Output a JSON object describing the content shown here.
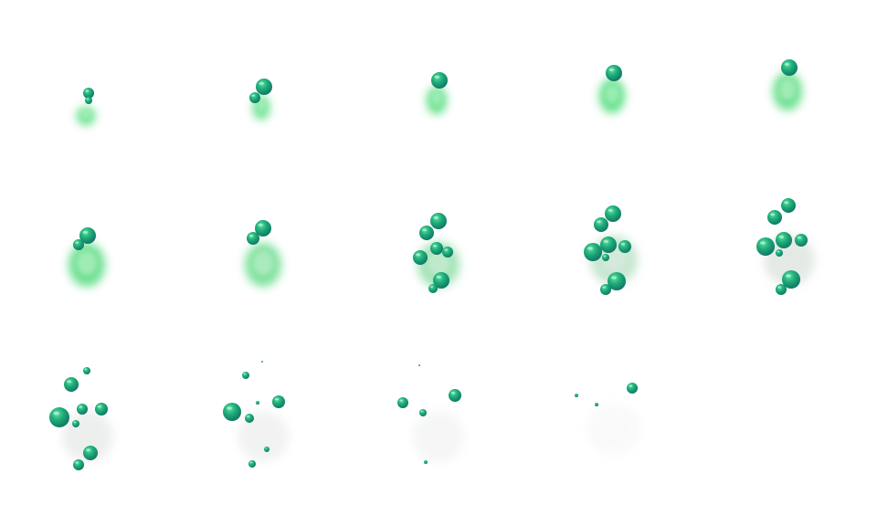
{
  "sprite_sheet": {
    "columns": 5,
    "rows": 3,
    "frame_count": 14,
    "colors": {
      "background": "#ffffff",
      "cloud_green": "#4fdc7a",
      "cloud_grey": "#d8dcd9",
      "bubble": "#1fae78",
      "bubble_dark": "#11806a",
      "bubble_highlight": "#bff5dc"
    },
    "frames": [
      {
        "index": 1,
        "cloud_green": 1.0,
        "cloud_opacity": 0.9
      },
      {
        "index": 2,
        "cloud_green": 1.0,
        "cloud_opacity": 0.9
      },
      {
        "index": 3,
        "cloud_green": 1.0,
        "cloud_opacity": 0.9
      },
      {
        "index": 4,
        "cloud_green": 1.0,
        "cloud_opacity": 0.9
      },
      {
        "index": 5,
        "cloud_green": 0.9,
        "cloud_opacity": 0.9
      },
      {
        "index": 6,
        "cloud_green": 0.9,
        "cloud_opacity": 0.9
      },
      {
        "index": 7,
        "cloud_green": 0.8,
        "cloud_opacity": 0.85
      },
      {
        "index": 8,
        "cloud_green": 0.55,
        "cloud_opacity": 0.8
      },
      {
        "index": 9,
        "cloud_green": 0.3,
        "cloud_opacity": 0.7
      },
      {
        "index": 10,
        "cloud_green": 0.05,
        "cloud_opacity": 0.6
      },
      {
        "index": 11,
        "cloud_green": 0.0,
        "cloud_opacity": 0.45
      },
      {
        "index": 12,
        "cloud_green": 0.0,
        "cloud_opacity": 0.35
      },
      {
        "index": 13,
        "cloud_green": 0.0,
        "cloud_opacity": 0.25
      },
      {
        "index": 14,
        "cloud_green": 0.0,
        "cloud_opacity": 0.15
      }
    ]
  }
}
